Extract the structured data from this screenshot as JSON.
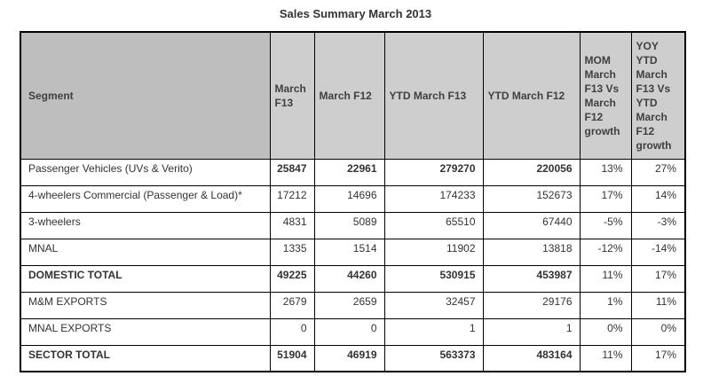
{
  "title": "Sales Summary March 2013",
  "colors": {
    "header_segment_bg": "#bebebe",
    "header_bg": "#cecece",
    "border": "#000000",
    "text": "#333333"
  },
  "table": {
    "columns": [
      "Segment",
      "March F13",
      "March F12",
      "YTD March F13",
      "YTD March F12",
      "MOM March F13 Vs March F12 growth",
      "YOY YTD March F13 Vs YTD March F12 growth"
    ],
    "rows": [
      [
        "Passenger Vehicles (UVs & Verito)",
        "25847",
        "22961",
        "279270",
        "220056",
        "13%",
        "27%"
      ],
      [
        "4-wheelers Commercial (Passenger & Load)*",
        "17212",
        "14696",
        "174233",
        "152673",
        "17%",
        "14%"
      ],
      [
        "3-wheelers",
        "4831",
        "5089",
        "65510",
        "67440",
        "-5%",
        "-3%"
      ],
      [
        "MNAL",
        "1335",
        "1514",
        "11902",
        "13818",
        "-12%",
        "-14%"
      ],
      [
        "DOMESTIC TOTAL",
        "49225",
        "44260",
        "530915",
        "453987",
        "11%",
        "17%"
      ],
      [
        "M&M EXPORTS",
        "2679",
        "2659",
        "32457",
        "29176",
        "1%",
        "11%"
      ],
      [
        "MNAL EXPORTS",
        "0",
        "0",
        "1",
        "1",
        "0%",
        "0%"
      ],
      [
        "SECTOR TOTAL",
        "51904",
        "46919",
        "563373",
        "483164",
        "11%",
        "17%"
      ]
    ],
    "row_styles": [
      {
        "bold_label": false,
        "bold_numbers": true
      },
      {
        "bold_label": false,
        "bold_numbers": false
      },
      {
        "bold_label": false,
        "bold_numbers": false
      },
      {
        "bold_label": false,
        "bold_numbers": false
      },
      {
        "bold_label": true,
        "bold_numbers": true
      },
      {
        "bold_label": false,
        "bold_numbers": false
      },
      {
        "bold_label": false,
        "bold_numbers": false
      },
      {
        "bold_label": true,
        "bold_numbers": true
      }
    ]
  }
}
